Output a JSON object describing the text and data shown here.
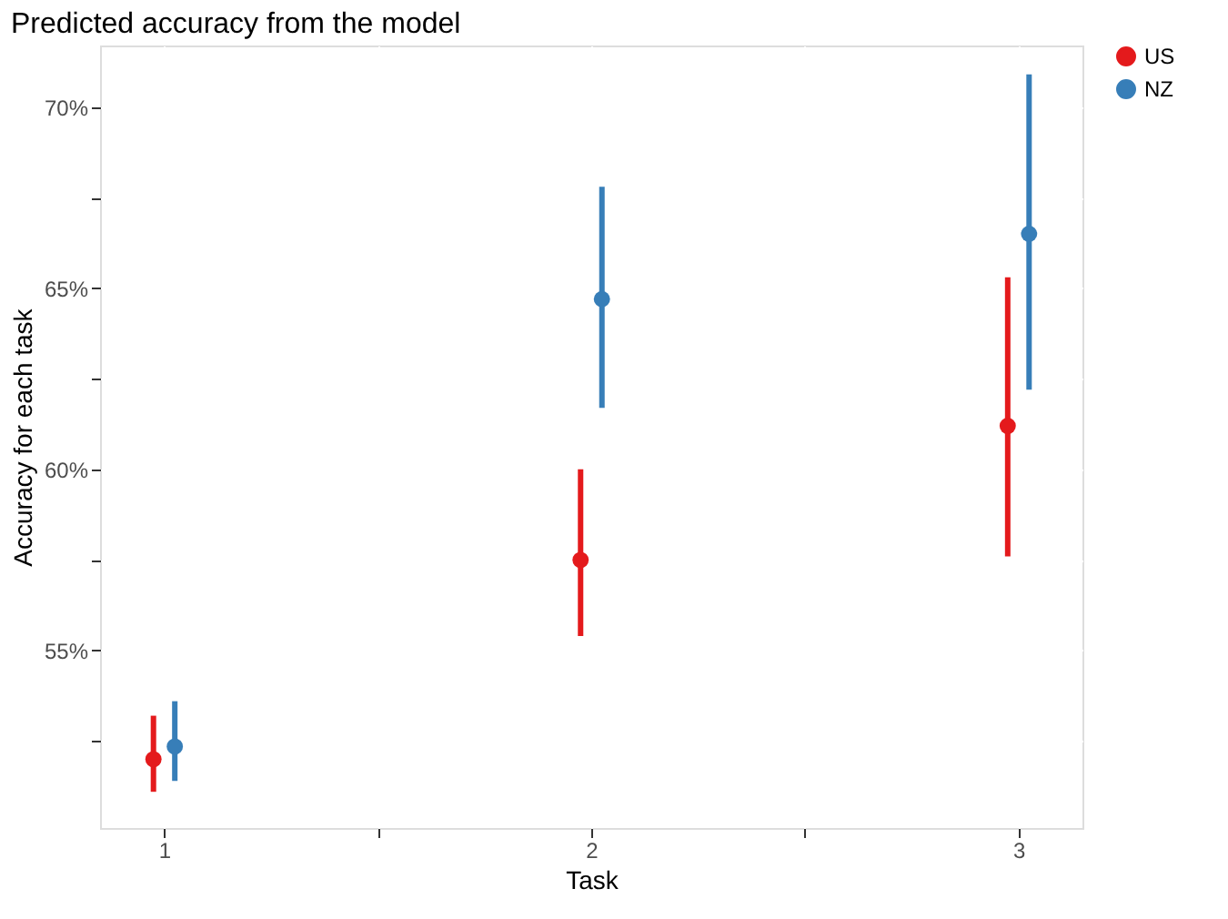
{
  "chart_data": {
    "type": "scatter",
    "title": "Predicted accuracy from the model",
    "xlabel": "Task",
    "ylabel": "Accuracy for each task",
    "xlim": [
      0.85,
      3.15
    ],
    "xticks": [
      1,
      {
        "value": 1.5,
        "label": null
      },
      2,
      {
        "value": 2.5,
        "label": null
      },
      3
    ],
    "ylim": [
      50.1,
      71.7
    ],
    "yticks": [
      {
        "value": 52.5,
        "label": null
      },
      {
        "value": 55,
        "label": "55%"
      },
      {
        "value": 57.5,
        "label": null
      },
      {
        "value": 60,
        "label": "60%"
      },
      {
        "value": 62.5,
        "label": null
      },
      {
        "value": 65,
        "label": "65%"
      },
      {
        "value": 67.5,
        "label": null
      },
      {
        "value": 70,
        "label": "70%"
      }
    ],
    "series": [
      {
        "name": "US",
        "color": "#e41a1c",
        "x": [
          0.975,
          1.975,
          2.975
        ],
        "values": [
          52.0,
          57.5,
          61.2
        ],
        "errors": [
          [
            51.1,
            53.2
          ],
          [
            55.4,
            60.0
          ],
          [
            57.6,
            65.3
          ]
        ]
      },
      {
        "name": "NZ",
        "color": "#377eb8",
        "x": [
          1.025,
          2.025,
          3.025
        ],
        "values": [
          52.35,
          64.7,
          66.5
        ],
        "errors": [
          [
            51.4,
            53.6
          ],
          [
            61.7,
            67.8
          ],
          [
            62.2,
            70.9
          ]
        ]
      }
    ],
    "grid": true,
    "legend": "right",
    "marker": "circle"
  }
}
